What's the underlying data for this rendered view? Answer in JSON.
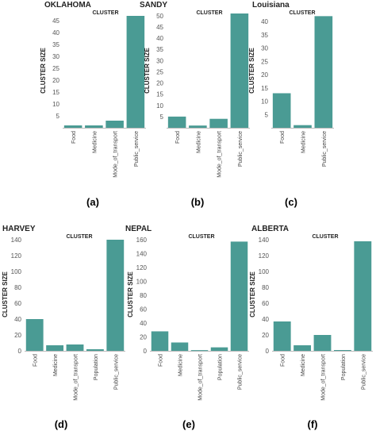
{
  "colors": {
    "bar": "#4a9b94",
    "axis": "#bbbbbb",
    "text": "#333333"
  },
  "chart_data": [
    {
      "type": "bar",
      "title": "OKLAHOMA",
      "header": "CLUSTER",
      "ylabel": "CLUSTER SIZE",
      "sublabel": "(a)",
      "ylim": [
        0,
        48
      ],
      "yticks": [
        5,
        10,
        15,
        20,
        25,
        30,
        35,
        40,
        45
      ],
      "categories": [
        "Food",
        "Medicine",
        "Mode_of_transport",
        "Public_service"
      ],
      "values": [
        1,
        1,
        3,
        47
      ]
    },
    {
      "type": "bar",
      "title": "SANDY",
      "header": "CLUSTER",
      "ylabel": "CLUSTER SIZE",
      "sublabel": "(b)",
      "ylim": [
        0,
        51
      ],
      "yticks": [
        5,
        10,
        15,
        20,
        25,
        30,
        35,
        40,
        45,
        50
      ],
      "categories": [
        "Food",
        "Medicine",
        "Mode_of_transport",
        "Public_service"
      ],
      "values": [
        5,
        1,
        4,
        51
      ]
    },
    {
      "type": "bar",
      "title": "Louisiana",
      "header": "CLUSTER",
      "ylabel": "CLUSTER SIZE",
      "sublabel": "(c)",
      "ylim": [
        0,
        43
      ],
      "yticks": [
        5,
        10,
        15,
        20,
        25,
        30,
        35,
        40
      ],
      "categories": [
        "Food",
        "Medicine",
        "Public_service"
      ],
      "values": [
        13,
        1,
        42
      ]
    },
    {
      "type": "bar",
      "title": "HARVEY",
      "header": "CLUSTER",
      "ylabel": "CLUSTER SIZE",
      "sublabel": "(d)",
      "ylim": [
        0,
        142
      ],
      "yticks": [
        0,
        20,
        40,
        60,
        80,
        100,
        120,
        140
      ],
      "categories": [
        "Food",
        "Medicine",
        "Mode_of_transport",
        "Population",
        "Public_service"
      ],
      "values": [
        40,
        7,
        8,
        2,
        140
      ]
    },
    {
      "type": "bar",
      "title": "NEPAL",
      "header": "CLUSTER",
      "ylabel": "CLUSTER SIZE",
      "sublabel": "(e)",
      "ylim": [
        0,
        162
      ],
      "yticks": [
        0,
        20,
        40,
        60,
        80,
        100,
        120,
        140,
        160
      ],
      "categories": [
        "Food",
        "Medicine",
        "Mode_of_transport",
        "Population",
        "Public_service"
      ],
      "values": [
        28,
        12,
        1,
        5,
        157
      ]
    },
    {
      "type": "bar",
      "title": "ALBERTA",
      "header": "CLUSTER",
      "ylabel": "CLUSTER SIZE",
      "sublabel": "(f)",
      "ylim": [
        0,
        142
      ],
      "yticks": [
        0,
        20,
        40,
        60,
        80,
        100,
        120,
        140
      ],
      "categories": [
        "Food",
        "Medicine",
        "Mode_of_transport",
        "Population",
        "Public_service"
      ],
      "values": [
        37,
        7,
        20,
        1,
        138
      ]
    }
  ]
}
